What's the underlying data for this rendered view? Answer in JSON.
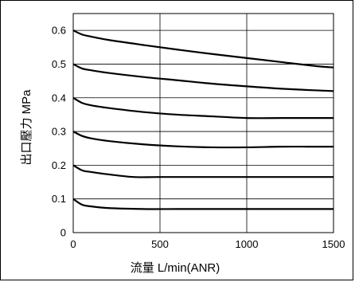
{
  "chart_data": {
    "type": "line",
    "xlabel": "流量 L/min(ANR)",
    "ylabel": "出口壓力 MPa",
    "xlim": [
      0,
      1500
    ],
    "ylim": [
      0,
      0.65
    ],
    "xticks": [
      0,
      500,
      1000,
      1500
    ],
    "xtick_labels": [
      "0",
      "500",
      "1000",
      "1500"
    ],
    "yticks": [
      0,
      0.1,
      0.2,
      0.3,
      0.4,
      0.5,
      0.6
    ],
    "ytick_labels": [
      "0",
      "0.1",
      "0.2",
      "0.3",
      "0.4",
      "0.5",
      "0.6"
    ],
    "grid": true,
    "line_color": "#000000",
    "series": [
      {
        "x": [
          0,
          50,
          100,
          200,
          400,
          600,
          800,
          1000,
          1200,
          1400,
          1500
        ],
        "values": [
          0.1,
          0.083,
          0.078,
          0.073,
          0.07,
          0.07,
          0.07,
          0.07,
          0.07,
          0.07,
          0.07
        ]
      },
      {
        "x": [
          0,
          50,
          100,
          200,
          350,
          500,
          800,
          1000,
          1200,
          1400,
          1500
        ],
        "values": [
          0.2,
          0.185,
          0.18,
          0.173,
          0.165,
          0.165,
          0.165,
          0.165,
          0.165,
          0.165,
          0.165
        ]
      },
      {
        "x": [
          0,
          50,
          100,
          200,
          400,
          600,
          800,
          1000,
          1200,
          1400,
          1500
        ],
        "values": [
          0.3,
          0.287,
          0.28,
          0.272,
          0.262,
          0.256,
          0.253,
          0.253,
          0.255,
          0.255,
          0.255
        ]
      },
      {
        "x": [
          0,
          50,
          100,
          200,
          400,
          600,
          800,
          1000,
          1200,
          1400,
          1500
        ],
        "values": [
          0.4,
          0.385,
          0.378,
          0.37,
          0.358,
          0.35,
          0.345,
          0.34,
          0.34,
          0.34,
          0.34
        ]
      },
      {
        "x": [
          0,
          50,
          100,
          200,
          400,
          600,
          800,
          1000,
          1200,
          1400,
          1500
        ],
        "values": [
          0.5,
          0.487,
          0.482,
          0.474,
          0.462,
          0.452,
          0.442,
          0.434,
          0.427,
          0.422,
          0.42
        ]
      },
      {
        "x": [
          0,
          50,
          100,
          200,
          400,
          600,
          800,
          1000,
          1200,
          1400,
          1500
        ],
        "values": [
          0.6,
          0.588,
          0.582,
          0.572,
          0.557,
          0.543,
          0.53,
          0.518,
          0.506,
          0.494,
          0.49
        ]
      }
    ]
  }
}
